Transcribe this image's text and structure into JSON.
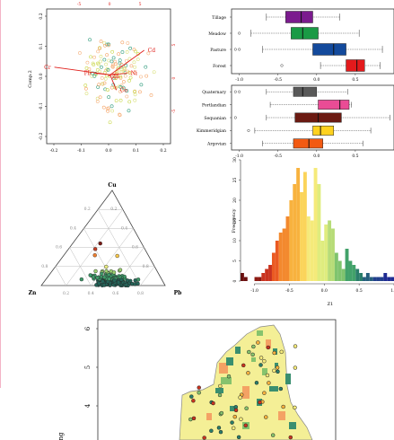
{
  "colors": {
    "accent_red": "#e0201c",
    "site_green": "#2e9b7c",
    "site_yellow": "#c9d84a",
    "site_orange": "#f4a264",
    "map_yellow": "#f4ef96",
    "map_green": "#3a8f6f",
    "map_outline": "#888888"
  },
  "chart_data": [
    {
      "type": "scatter",
      "subtype": "biplot",
      "ylabel": "Comp.2",
      "x_ticks": [
        "-0.2",
        "-0.1",
        "0.0",
        "0.1",
        "0.2"
      ],
      "y_ticks": [
        "-0.2",
        "-0.1",
        "0.0",
        "0.1",
        "0.2"
      ],
      "top_ticks": [
        "-5",
        "0",
        "5"
      ],
      "right_ticks": [
        "5",
        "0",
        "-5"
      ],
      "xlim": [
        -0.2,
        0.2
      ],
      "ylim": [
        -0.22,
        0.22
      ],
      "arrows": [
        {
          "label": "Cd",
          "x": 0.115,
          "y": 0.085
        },
        {
          "label": "Cr",
          "x": -0.175,
          "y": 0.03
        },
        {
          "label": "Pb",
          "x": -0.045,
          "y": 0.01
        },
        {
          "label": "Zn",
          "x": 0.0,
          "y": 0.0
        },
        {
          "label": "Ni",
          "x": 0.06,
          "y": 0.01
        },
        {
          "label": "Co",
          "x": 0.025,
          "y": -0.045
        }
      ]
    },
    {
      "type": "box",
      "categories": [
        "Tillage",
        "Meadow",
        "Pasture",
        "Forest"
      ],
      "xlim": [
        -1.1,
        1.0
      ],
      "x_ticks": [
        "-1.0",
        "-0.5",
        "0.0",
        "0.5"
      ],
      "boxes": [
        {
          "q1": -0.4,
          "median": -0.2,
          "q3": -0.05,
          "low": -0.65,
          "high": 0.3,
          "outliers": [],
          "color": "#7b1b8e"
        },
        {
          "q1": -0.33,
          "median": -0.18,
          "q3": 0.02,
          "low": -0.85,
          "high": 0.55,
          "outliers": [
            -1.0
          ],
          "color": "#1a9a45"
        },
        {
          "q1": -0.05,
          "median": 0.22,
          "q3": 0.38,
          "low": -0.7,
          "high": 0.85,
          "outliers": [
            -1.05,
            -1.0
          ],
          "color": "#134a9c"
        },
        {
          "q1": 0.38,
          "median": 0.52,
          "q3": 0.62,
          "low": 0.05,
          "high": 0.82,
          "outliers": [
            -0.45
          ],
          "color": "#e31a1c"
        }
      ]
    },
    {
      "type": "box",
      "categories": [
        "Quaternary",
        "Portlandian",
        "Sequanian",
        "Kimmeridgian",
        "Argovian"
      ],
      "xlim": [
        -1.1,
        1.0
      ],
      "x_ticks": [
        "-1.0",
        "-0.5",
        "0.0",
        "0.5"
      ],
      "boxes": [
        {
          "q1": -0.3,
          "median": -0.18,
          "q3": 0.0,
          "low": -0.65,
          "high": 0.4,
          "outliers": [
            -1.05,
            -1.0
          ],
          "color": "#595959"
        },
        {
          "q1": 0.02,
          "median": 0.3,
          "q3": 0.42,
          "low": -0.6,
          "high": 0.45,
          "outliers": [],
          "color": "#ea4c95"
        },
        {
          "q1": -0.28,
          "median": 0.02,
          "q3": 0.32,
          "low": -0.65,
          "high": 0.95,
          "outliers": [
            -1.05
          ],
          "color": "#6b1a12"
        },
        {
          "q1": -0.05,
          "median": 0.05,
          "q3": 0.22,
          "low": -0.8,
          "high": 0.7,
          "outliers": [
            -0.88
          ],
          "color": "#ffd21f"
        },
        {
          "q1": -0.3,
          "median": -0.1,
          "q3": 0.08,
          "low": -0.7,
          "high": 0.6,
          "outliers": [],
          "color": "#f25a12"
        }
      ]
    },
    {
      "type": "bar",
      "subtype": "histogram",
      "xlabel": "Z1",
      "ylabel": "Frequency",
      "xlim": [
        -1.2,
        1.0
      ],
      "ylim": [
        0,
        30
      ],
      "x_ticks": [
        "-1.0",
        "-0.5",
        "0.0",
        "0.5",
        "1.0"
      ],
      "y_ticks": [
        "0",
        "5",
        "10",
        "15",
        "20",
        "25",
        "30"
      ],
      "bin_width": 0.05,
      "bin_start": -1.2,
      "values": [
        2,
        1,
        0,
        0,
        1,
        1,
        2,
        3,
        4,
        7,
        10,
        12,
        13,
        16,
        20,
        24,
        28,
        22,
        27,
        16,
        15,
        28,
        24,
        10,
        14,
        15,
        13,
        7,
        5,
        3,
        8,
        5,
        4,
        3,
        2,
        1,
        2,
        1,
        1,
        1,
        1,
        2,
        1,
        1
      ]
    },
    {
      "type": "scatter",
      "subtype": "ternary",
      "vertices": [
        "Cu",
        "Zn",
        "Pb"
      ],
      "ticks": [
        "0.2",
        "0.4",
        "0.6",
        "0.8"
      ],
      "colors": [
        "#7a1a14",
        "#c43d26",
        "#f07f2e",
        "#f9c84a",
        "#e8ec80",
        "#9bcf72",
        "#3f9a6a",
        "#25655a"
      ]
    },
    {
      "type": "map",
      "y_ticks": [
        "6",
        "5",
        "4"
      ],
      "x_label_fragment": "ng"
    }
  ]
}
